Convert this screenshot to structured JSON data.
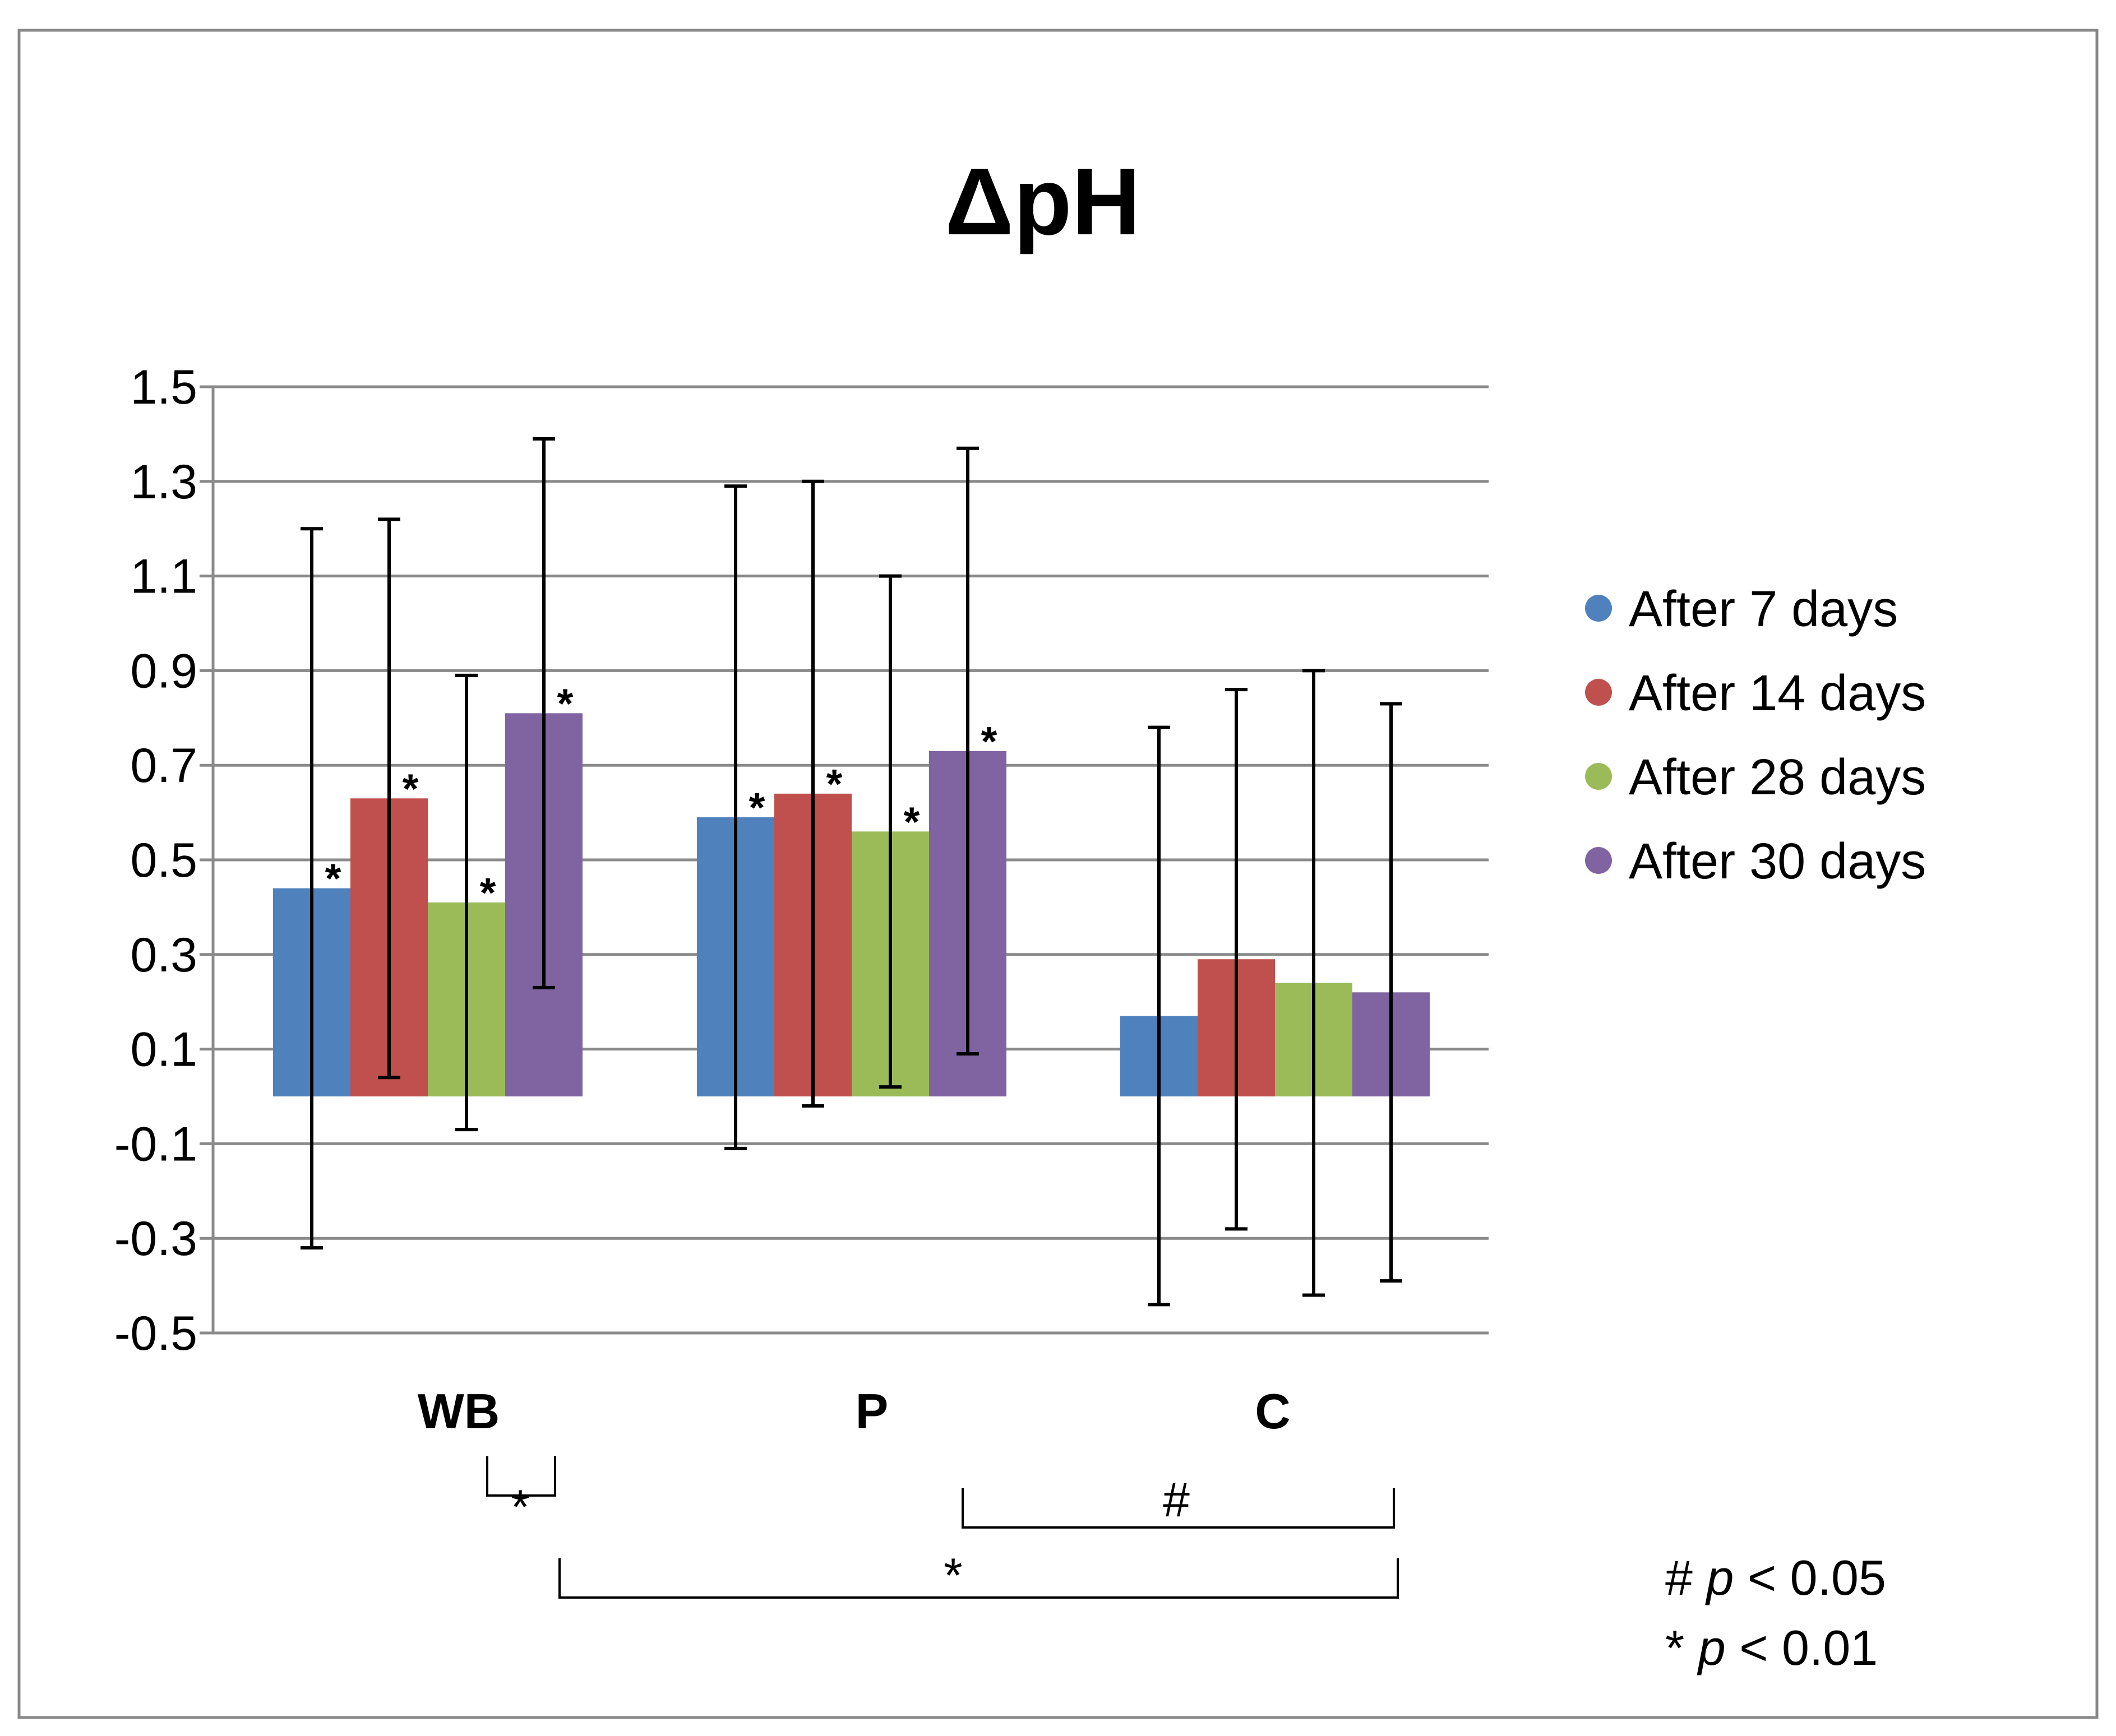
{
  "chart_data": {
    "type": "bar",
    "title": "ΔpH",
    "xlabel": "",
    "ylabel": "",
    "ylim": [
      -0.5,
      1.5
    ],
    "yticks": [
      1.5,
      1.3,
      1.1,
      0.9,
      0.7,
      0.5,
      0.3,
      0.1,
      -0.1,
      -0.3,
      -0.5
    ],
    "ytick_labels": [
      "1.5",
      "1.3",
      "1.1",
      "0.9",
      "0.7",
      "0.5",
      "0.3",
      "0.1",
      "-0.1",
      "-0.3",
      "-0.5"
    ],
    "grid": true,
    "legend_position": "right",
    "categories": [
      "WB",
      "P",
      "C"
    ],
    "series": [
      {
        "name": "After 7 days",
        "color": "#4F81BD",
        "values": [
          0.44,
          0.59,
          0.17
        ],
        "errors": [
          0.76,
          0.7,
          0.61
        ],
        "significance": [
          "*",
          "*",
          ""
        ]
      },
      {
        "name": "After 14 days",
        "color": "#C0504D",
        "values": [
          0.63,
          0.64,
          0.29
        ],
        "errors": [
          0.59,
          0.66,
          0.57
        ],
        "significance": [
          "*",
          "*",
          ""
        ]
      },
      {
        "name": "After 28 days",
        "color": "#9BBB59",
        "values": [
          0.41,
          0.56,
          0.24
        ],
        "errors": [
          0.48,
          0.54,
          0.66
        ],
        "significance": [
          "*",
          "*",
          ""
        ]
      },
      {
        "name": "After 30 days",
        "color": "#8064A2",
        "values": [
          0.81,
          0.73,
          0.22
        ],
        "errors": [
          0.58,
          0.64,
          0.61
        ],
        "significance": [
          "*",
          "*",
          ""
        ]
      }
    ],
    "comparisons": [
      {
        "label": "*",
        "description": "WB after 28 days vs WB after 30 days"
      },
      {
        "label": "#",
        "description": "P after 30 days vs C after 30 days"
      },
      {
        "label": "*",
        "description": "WB after 30 days vs C after 30 days"
      }
    ],
    "footnotes": [
      {
        "symbol": "#",
        "text": "p < 0.05"
      },
      {
        "symbol": "*",
        "text": "p < 0.01"
      }
    ]
  }
}
